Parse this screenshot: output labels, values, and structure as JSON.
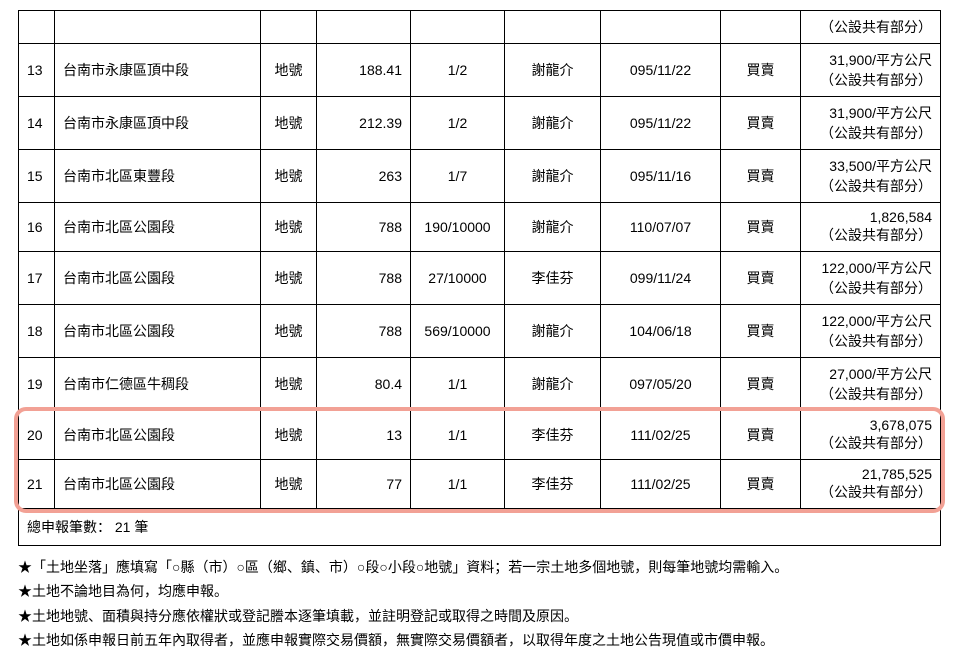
{
  "table": {
    "header_right": "（公設共有部分）",
    "rows": [
      {
        "no": "13",
        "loc": "台南市永康區頂中段",
        "unit": "地號",
        "area": "188.41",
        "share": "1/2",
        "owner": "謝龍介",
        "date": "095/11/22",
        "reason": "買賣",
        "val1": "31,900/平方公尺",
        "val2": "（公設共有部分）"
      },
      {
        "no": "14",
        "loc": "台南市永康區頂中段",
        "unit": "地號",
        "area": "212.39",
        "share": "1/2",
        "owner": "謝龍介",
        "date": "095/11/22",
        "reason": "買賣",
        "val1": "31,900/平方公尺",
        "val2": "（公設共有部分）"
      },
      {
        "no": "15",
        "loc": "台南市北區東豐段",
        "unit": "地號",
        "area": "263",
        "share": "1/7",
        "owner": "謝龍介",
        "date": "095/11/16",
        "reason": "買賣",
        "val1": "33,500/平方公尺",
        "val2": "（公設共有部分）"
      },
      {
        "no": "16",
        "loc": "台南市北區公園段",
        "unit": "地號",
        "area": "788",
        "share": "190/10000",
        "owner": "謝龍介",
        "date": "110/07/07",
        "reason": "買賣",
        "val1": "1,826,584",
        "val2": "（公設共有部分）"
      },
      {
        "no": "17",
        "loc": "台南市北區公園段",
        "unit": "地號",
        "area": "788",
        "share": "27/10000",
        "owner": "李佳芬",
        "date": "099/11/24",
        "reason": "買賣",
        "val1": "122,000/平方公尺",
        "val2": "（公設共有部分）"
      },
      {
        "no": "18",
        "loc": "台南市北區公園段",
        "unit": "地號",
        "area": "788",
        "share": "569/10000",
        "owner": "謝龍介",
        "date": "104/06/18",
        "reason": "買賣",
        "val1": "122,000/平方公尺",
        "val2": "（公設共有部分）"
      },
      {
        "no": "19",
        "loc": "台南市仁德區牛稠段",
        "unit": "地號",
        "area": "80.4",
        "share": "1/1",
        "owner": "謝龍介",
        "date": "097/05/20",
        "reason": "買賣",
        "val1": "27,000/平方公尺",
        "val2": "（公設共有部分）"
      },
      {
        "no": "20",
        "loc": "台南市北區公園段",
        "unit": "地號",
        "area": "13",
        "share": "1/1",
        "owner": "李佳芬",
        "date": "111/02/25",
        "reason": "買賣",
        "val1": "3,678,075",
        "val2": "（公設共有部分）"
      },
      {
        "no": "21",
        "loc": "台南市北區公園段",
        "unit": "地號",
        "area": "77",
        "share": "1/1",
        "owner": "李佳芬",
        "date": "111/02/25",
        "reason": "買賣",
        "val1": "21,785,525",
        "val2": "（公設共有部分）"
      }
    ],
    "summary_label": "總申報筆數：",
    "summary_value": "21 筆"
  },
  "highlight": {
    "start_row_index": 7,
    "end_row_index": 8,
    "color": "#f2a195"
  },
  "notes": [
    "★「土地坐落」應填寫「○縣（市）○區（鄉、鎮、市）○段○小段○地號」資料；若一宗土地多個地號，則每筆地號均需輸入。",
    "★土地不論地目為何，均應申報。",
    "★土地地號、面積與持分應依權狀或登記謄本逐筆填載，並註明登記或取得之時間及原因。",
    "★土地如係申報日前五年內取得者，並應申報實際交易價額，無實際交易價額者，以取得年度之土地公告現值或市價申報。"
  ],
  "colors": {
    "border": "#000000",
    "highlight_border": "#f2a195",
    "text": "#000000",
    "background": "#ffffff"
  }
}
